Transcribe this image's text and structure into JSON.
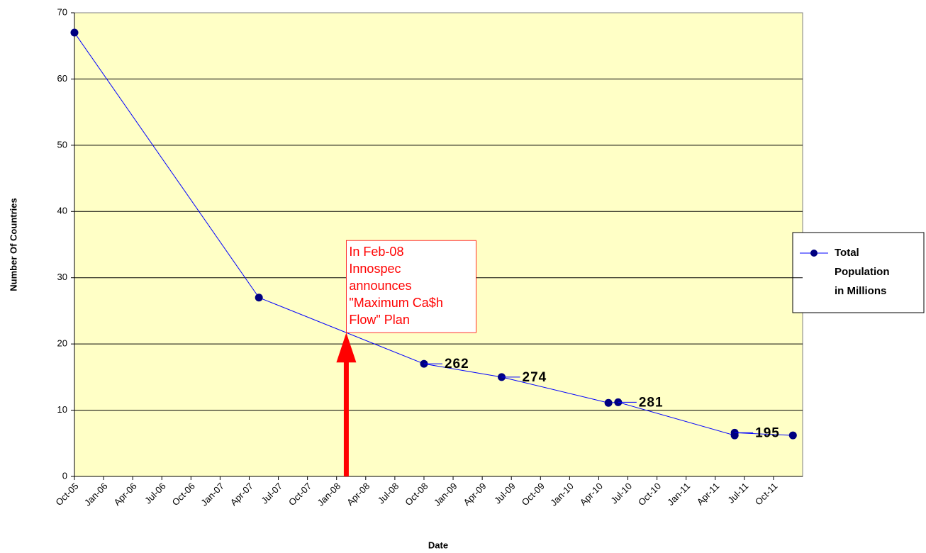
{
  "chart_data": {
    "type": "line",
    "x_label": "Date",
    "y_label": "Number Of Countries",
    "xlim": [
      "Oct-05",
      "Jan-12"
    ],
    "xticks": [
      "Oct-05",
      "Jan-06",
      "Apr-06",
      "Jul-06",
      "Oct-06",
      "Jan-07",
      "Apr-07",
      "Jul-07",
      "Oct-07",
      "Jan-08",
      "Apr-08",
      "Jul-08",
      "Oct-08",
      "Jan-09",
      "Apr-09",
      "Jul-09",
      "Oct-09",
      "Jan-10",
      "Apr-10",
      "Jul-10",
      "Oct-10",
      "Jan-11",
      "Apr-11",
      "Jul-11",
      "Oct-11"
    ],
    "ylim": [
      0,
      70
    ],
    "yticks": [
      0,
      10,
      20,
      30,
      40,
      50,
      60,
      70
    ],
    "grid": true,
    "legend": "right",
    "x": [
      "Oct-05",
      "May-07",
      "Oct-08",
      "Jun-09",
      "May-10",
      "Jun-10",
      "Jun-11",
      "Jun-11",
      "Dec-11"
    ],
    "series": [
      {
        "name": "Total Population in Millions",
        "color": "#0000ff",
        "marker_color": "#000080",
        "values": [
          67,
          27,
          17,
          15,
          11.1,
          11.2,
          6.2,
          6.6,
          6.2
        ],
        "point_labels": [
          null,
          null,
          "262",
          "274",
          null,
          "281",
          null,
          "195",
          null
        ]
      }
    ],
    "annotation": {
      "x": "Feb-08",
      "color": "#ff0000",
      "lines": [
        "In Feb-08",
        "Innospec",
        "announces",
        "\"Maximum Ca$h",
        "Flow\" Plan"
      ]
    }
  }
}
